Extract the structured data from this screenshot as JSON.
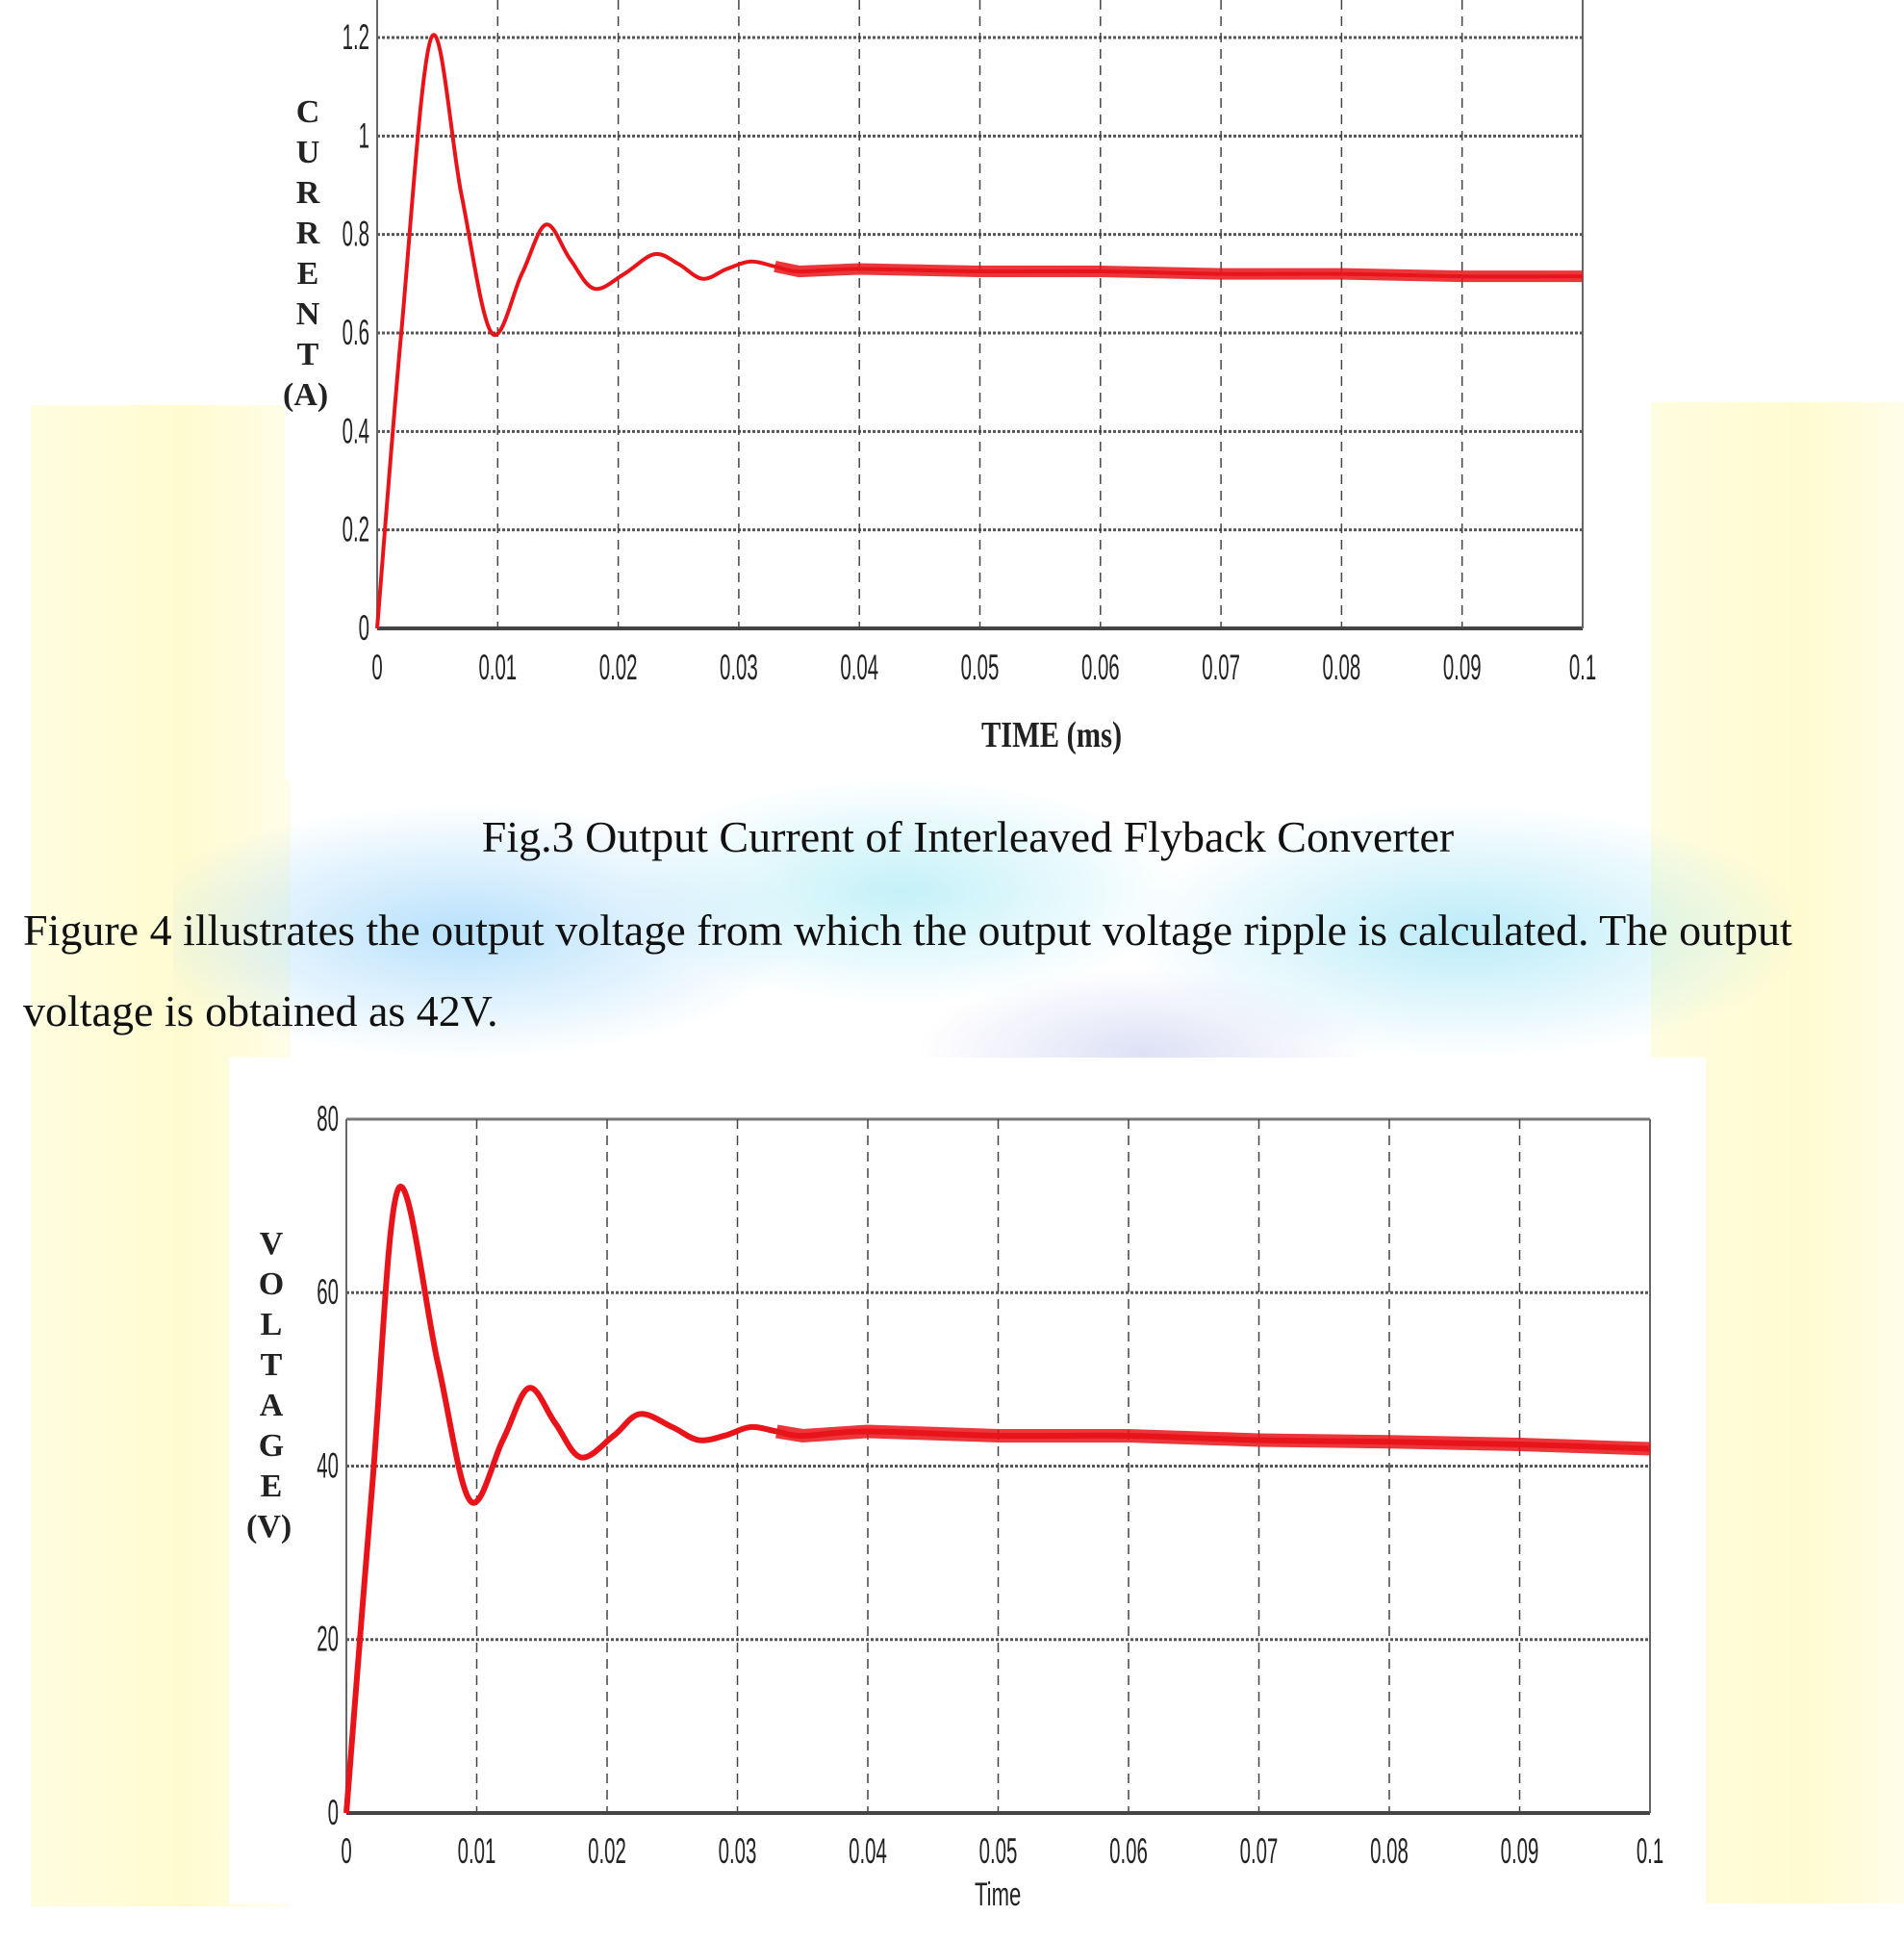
{
  "caption": "Fig.3 Output Current of Interleaved Flyback Converter",
  "paragraph": "Figure 4 illustrates the output voltage from which the output voltage ripple is calculated. The output voltage is obtained as 42V.",
  "chart_data": [
    {
      "type": "line",
      "xlabel": "TIME (ms)",
      "ylabel": "CURRENT (A)",
      "xlim": [
        0,
        0.1
      ],
      "ylim": [
        0,
        1.2
      ],
      "grid": true,
      "color": "#e8141a",
      "xticks": [
        "0",
        "0.01",
        "0.02",
        "0.03",
        "0.04",
        "0.05",
        "0.06",
        "0.07",
        "0.08",
        "0.09",
        "0.1"
      ],
      "yticks": [
        "0",
        "0.2",
        "0.4",
        "0.6",
        "0.8",
        "1",
        "1.2"
      ],
      "x": [
        0,
        0.002,
        0.0045,
        0.007,
        0.0095,
        0.012,
        0.014,
        0.016,
        0.018,
        0.0205,
        0.023,
        0.025,
        0.027,
        0.029,
        0.031,
        0.033,
        0.035,
        0.04,
        0.05,
        0.06,
        0.07,
        0.08,
        0.09,
        0.1
      ],
      "y": [
        0,
        0.6,
        1.2,
        0.88,
        0.6,
        0.72,
        0.82,
        0.75,
        0.69,
        0.72,
        0.76,
        0.74,
        0.71,
        0.73,
        0.745,
        0.735,
        0.725,
        0.73,
        0.725,
        0.725,
        0.72,
        0.72,
        0.715,
        0.715
      ]
    },
    {
      "type": "line",
      "xlabel": "Time",
      "ylabel": "VOLTAGE (V)",
      "xlim": [
        0,
        0.1
      ],
      "ylim": [
        0,
        80
      ],
      "grid": true,
      "color": "#e8141a",
      "xticks": [
        "0",
        "0.01",
        "0.02",
        "0.03",
        "0.04",
        "0.05",
        "0.06",
        "0.07",
        "0.08",
        "0.09",
        "0.1"
      ],
      "yticks": [
        "0",
        "20",
        "40",
        "60",
        "80"
      ],
      "x": [
        0,
        0.002,
        0.004,
        0.007,
        0.0095,
        0.012,
        0.014,
        0.016,
        0.018,
        0.0205,
        0.0225,
        0.025,
        0.027,
        0.029,
        0.031,
        0.033,
        0.035,
        0.04,
        0.05,
        0.06,
        0.07,
        0.08,
        0.09,
        0.1
      ],
      "y": [
        0,
        38,
        72,
        52,
        36,
        43,
        49,
        45,
        41,
        43.5,
        46,
        44.5,
        43,
        43.5,
        44.5,
        44,
        43.5,
        44,
        43.5,
        43.5,
        43,
        42.8,
        42.5,
        42
      ]
    }
  ]
}
